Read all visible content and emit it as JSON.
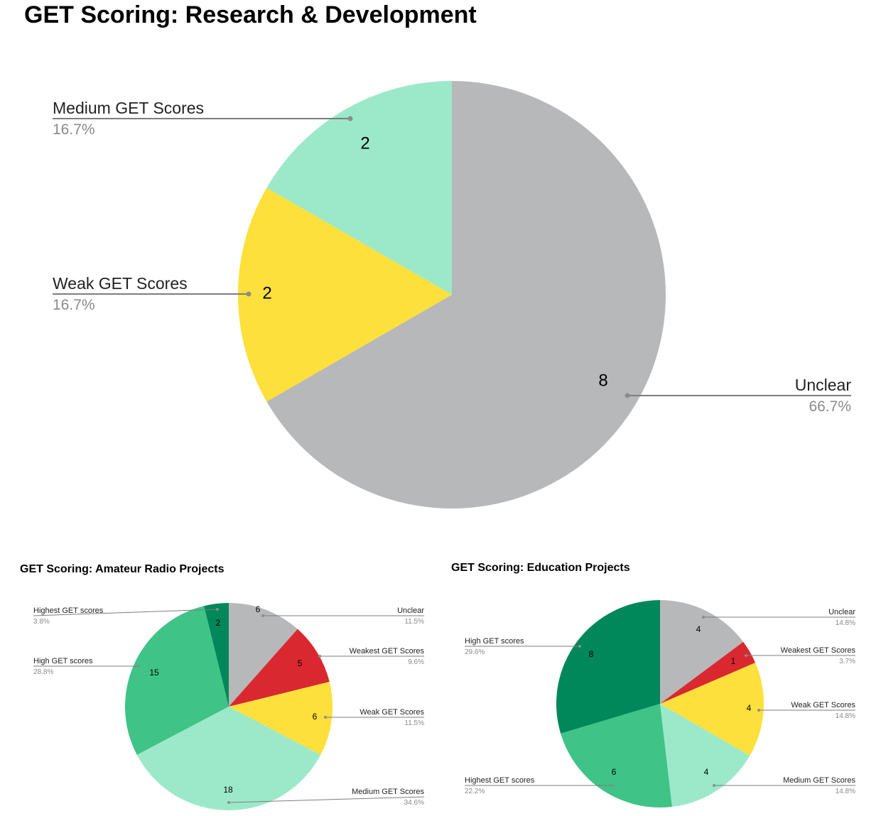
{
  "chart_data": [
    {
      "type": "pie",
      "title": "GET Scoring: Research & Development",
      "slices": [
        {
          "label": "Unclear",
          "value": 8,
          "percent": "66.7%",
          "color": "#b7b8ba"
        },
        {
          "label": "Weak GET Scores",
          "value": 2,
          "percent": "16.7%",
          "color": "#fde03b"
        },
        {
          "label": "Medium GET Scores",
          "value": 2,
          "percent": "16.7%",
          "color": "#9ce9c9"
        }
      ]
    },
    {
      "type": "pie",
      "title": "GET Scoring: Amateur Radio Projects",
      "slices": [
        {
          "label": "Unclear",
          "value": 6,
          "percent": "11.5%",
          "color": "#b7b8ba"
        },
        {
          "label": "Weakest GET Scores",
          "value": 5,
          "percent": "9.6%",
          "color": "#d9282f"
        },
        {
          "label": "Weak GET Scores",
          "value": 6,
          "percent": "11.5%",
          "color": "#fde03b"
        },
        {
          "label": "Medium GET Scores",
          "value": 18,
          "percent": "34.6%",
          "color": "#9ce9c9"
        },
        {
          "label": "High GET scores",
          "value": 15,
          "percent": "28.8%",
          "color": "#3fc387"
        },
        {
          "label": "Highest GET scores",
          "value": 2,
          "percent": "3.8%",
          "color": "#00875a"
        }
      ]
    },
    {
      "type": "pie",
      "title": "GET Scoring: Education Projects",
      "slices": [
        {
          "label": "Unclear",
          "value": 4,
          "percent": "14.8%",
          "color": "#b7b8ba"
        },
        {
          "label": "Weakest GET Scores",
          "value": 1,
          "percent": "3.7%",
          "color": "#d9282f"
        },
        {
          "label": "Weak GET Scores",
          "value": 4,
          "percent": "14.8%",
          "color": "#fde03b"
        },
        {
          "label": "Medium GET Scores",
          "value": 4,
          "percent": "14.8%",
          "color": "#9ce9c9"
        },
        {
          "label": "Highest GET scores",
          "value": 6,
          "percent": "22.2%",
          "color": "#3fc387"
        },
        {
          "label": "High GET scores",
          "value": 8,
          "percent": "29.6%",
          "color": "#00875a"
        }
      ]
    }
  ]
}
